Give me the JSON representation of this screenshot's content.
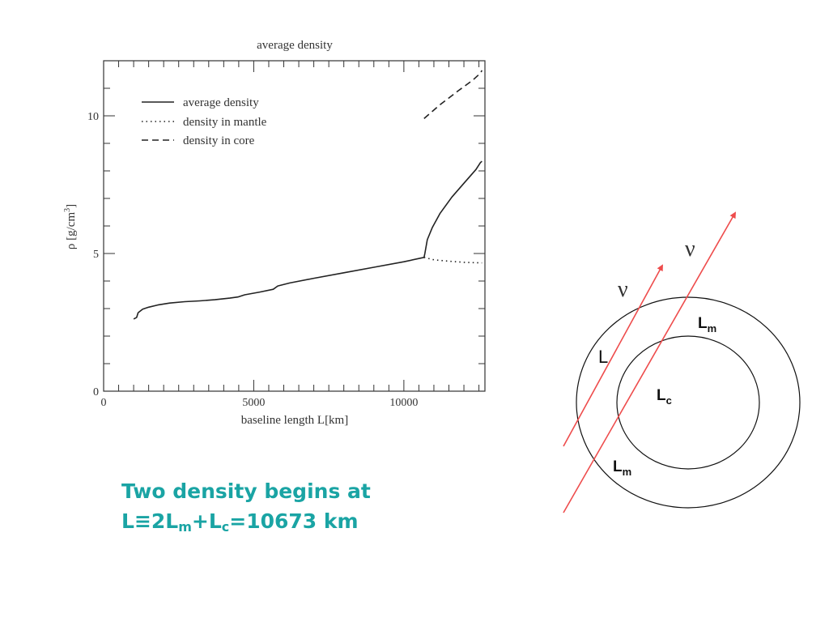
{
  "chart_data": {
    "type": "line",
    "title": "average density",
    "xlabel": "baseline length L[km]",
    "ylabel_base": "ρ [g/cm",
    "ylabel_sup": "3",
    "ylabel_close": "]",
    "xlim": [
      0,
      12700
    ],
    "ylim": [
      0,
      12
    ],
    "x_ticks": [
      0,
      5000,
      10000
    ],
    "x_tick_labels": [
      "0",
      "5000",
      "10000"
    ],
    "y_ticks": [
      0,
      5,
      10
    ],
    "y_tick_labels": [
      "0",
      "5",
      "10"
    ],
    "legend_position": "top-left",
    "series": [
      {
        "name": "average density",
        "style": "solid",
        "points": [
          [
            1000,
            2.62
          ],
          [
            1100,
            2.68
          ],
          [
            1150,
            2.85
          ],
          [
            1300,
            2.98
          ],
          [
            1500,
            3.05
          ],
          [
            1800,
            3.13
          ],
          [
            2200,
            3.2
          ],
          [
            2700,
            3.25
          ],
          [
            3200,
            3.28
          ],
          [
            3700,
            3.32
          ],
          [
            4200,
            3.38
          ],
          [
            4470,
            3.42
          ],
          [
            4700,
            3.5
          ],
          [
            5200,
            3.6
          ],
          [
            5650,
            3.7
          ],
          [
            5800,
            3.82
          ],
          [
            6200,
            3.93
          ],
          [
            7000,
            4.1
          ],
          [
            8000,
            4.3
          ],
          [
            9000,
            4.5
          ],
          [
            10000,
            4.7
          ],
          [
            10673,
            4.86
          ],
          [
            10700,
            5.0
          ],
          [
            10780,
            5.5
          ],
          [
            10950,
            5.95
          ],
          [
            11200,
            6.45
          ],
          [
            11600,
            7.05
          ],
          [
            12000,
            7.55
          ],
          [
            12400,
            8.05
          ],
          [
            12550,
            8.3
          ],
          [
            12600,
            8.35
          ]
        ]
      },
      {
        "name": "density in mantle",
        "style": "dotted",
        "points": [
          [
            10673,
            4.86
          ],
          [
            11000,
            4.77
          ],
          [
            11500,
            4.72
          ],
          [
            12000,
            4.68
          ],
          [
            12600,
            4.66
          ]
        ]
      },
      {
        "name": "density in core",
        "style": "dashed",
        "points": [
          [
            10673,
            9.9
          ],
          [
            11200,
            10.4
          ],
          [
            11800,
            10.9
          ],
          [
            12300,
            11.3
          ],
          [
            12550,
            11.55
          ],
          [
            12600,
            11.65
          ]
        ]
      }
    ]
  },
  "diagram": {
    "nu_label": "ν",
    "L_label": "L",
    "Lm_base": "L",
    "Lm_sub": "m",
    "Lc_base": "L",
    "Lc_sub": "c",
    "ray_color": "#ee4c4c"
  },
  "caption": {
    "line1": "Two density begins at",
    "L": "L",
    "equiv": "≡",
    "two": "2",
    "Lm_base": "L",
    "Lm_sub": "m",
    "plus": "+",
    "Lc_base": "L",
    "Lc_sub": "c",
    "rest": "=10673 km"
  }
}
